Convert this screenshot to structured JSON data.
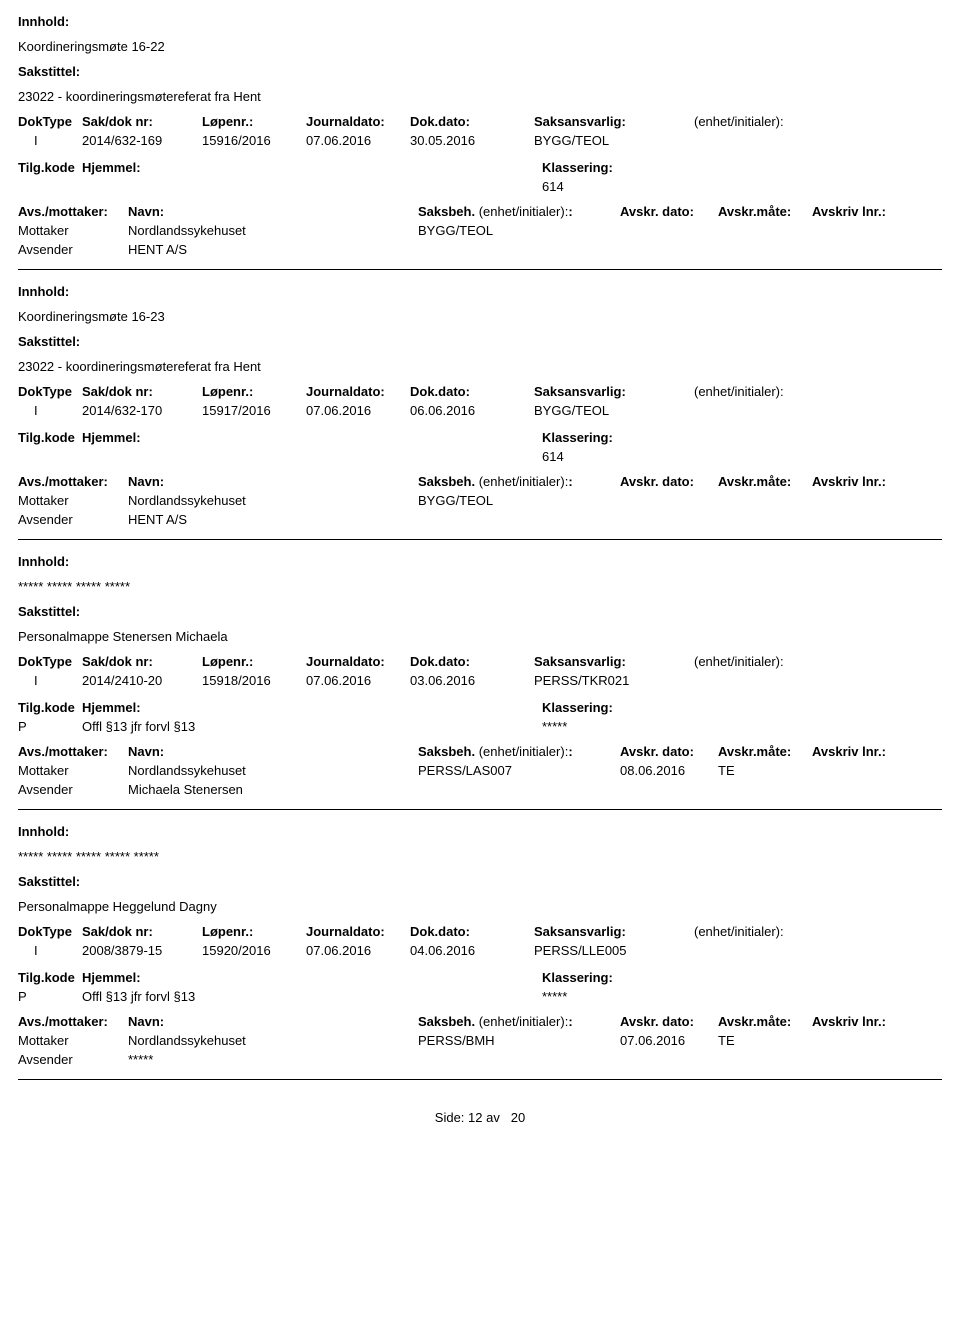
{
  "labels": {
    "innhold": "Innhold:",
    "sakstittel": "Sakstittel:",
    "doktype": "DokType",
    "sakdoknr": "Sak/dok nr:",
    "lopenr": "Løpenr.:",
    "journaldato": "Journaldato:",
    "dokdato": "Dok.dato:",
    "saksansvarlig": "Saksansvarlig:",
    "enhet": "(enhet/initialer):",
    "tilgkode": "Tilg.kode",
    "hjemmel": "Hjemmel:",
    "klassering": "Klassering:",
    "avsmottaker": "Avs./mottaker:",
    "navn": "Navn:",
    "saksbeh": "Saksbeh.",
    "saksbeh_enhet": "(enhet/initialer):",
    "avskrdato": "Avskr. dato:",
    "avskrmate": "Avskr.måte:",
    "avskrivlnr": "Avskriv lnr.:",
    "mottaker": "Mottaker",
    "avsender": "Avsender"
  },
  "entries": [
    {
      "innhold": "Koordineringsmøte 16-22",
      "sakstittel": "23022 - koordineringsmøtereferat fra Hent",
      "doktype": "I",
      "sakdoknr": "2014/632-169",
      "lopenr": "15916/2016",
      "journaldato": "07.06.2016",
      "dokdato": "30.05.2016",
      "saksansvarlig": "BYGG/TEOL",
      "tilgkode": "",
      "hjemmel": "",
      "klassering": "614",
      "mottaker_name": "Nordlandssykehuset",
      "mottaker_saksbeh": "BYGG/TEOL",
      "mottaker_avskrdato": "",
      "mottaker_avskrmate": "",
      "avsender_name": "HENT A/S"
    },
    {
      "innhold": "Koordineringsmøte 16-23",
      "sakstittel": "23022 - koordineringsmøtereferat fra Hent",
      "doktype": "I",
      "sakdoknr": "2014/632-170",
      "lopenr": "15917/2016",
      "journaldato": "07.06.2016",
      "dokdato": "06.06.2016",
      "saksansvarlig": "BYGG/TEOL",
      "tilgkode": "",
      "hjemmel": "",
      "klassering": "614",
      "mottaker_name": "Nordlandssykehuset",
      "mottaker_saksbeh": "BYGG/TEOL",
      "mottaker_avskrdato": "",
      "mottaker_avskrmate": "",
      "avsender_name": "HENT A/S"
    },
    {
      "innhold": "***** ***** ***** *****",
      "sakstittel": "Personalmappe Stenersen Michaela",
      "doktype": "I",
      "sakdoknr": "2014/2410-20",
      "lopenr": "15918/2016",
      "journaldato": "07.06.2016",
      "dokdato": "03.06.2016",
      "saksansvarlig": "PERSS/TKR021",
      "tilgkode": "P",
      "hjemmel": "Offl §13 jfr forvl §13",
      "klassering": "*****",
      "mottaker_name": "Nordlandssykehuset",
      "mottaker_saksbeh": "PERSS/LAS007",
      "mottaker_avskrdato": "08.06.2016",
      "mottaker_avskrmate": "TE",
      "avsender_name": "Michaela Stenersen"
    },
    {
      "innhold": "***** ***** ***** ***** *****",
      "sakstittel": "Personalmappe Heggelund Dagny",
      "doktype": "I",
      "sakdoknr": "2008/3879-15",
      "lopenr": "15920/2016",
      "journaldato": "07.06.2016",
      "dokdato": "04.06.2016",
      "saksansvarlig": "PERSS/LLE005",
      "tilgkode": "P",
      "hjemmel": "Offl §13 jfr forvl §13",
      "klassering": "*****",
      "mottaker_name": "Nordlandssykehuset",
      "mottaker_saksbeh": "PERSS/BMH",
      "mottaker_avskrdato": "07.06.2016",
      "mottaker_avskrmate": "TE",
      "avsender_name": "*****"
    }
  ],
  "footer": {
    "side_label": "Side:",
    "page": "12",
    "av": "av",
    "total": "20"
  }
}
